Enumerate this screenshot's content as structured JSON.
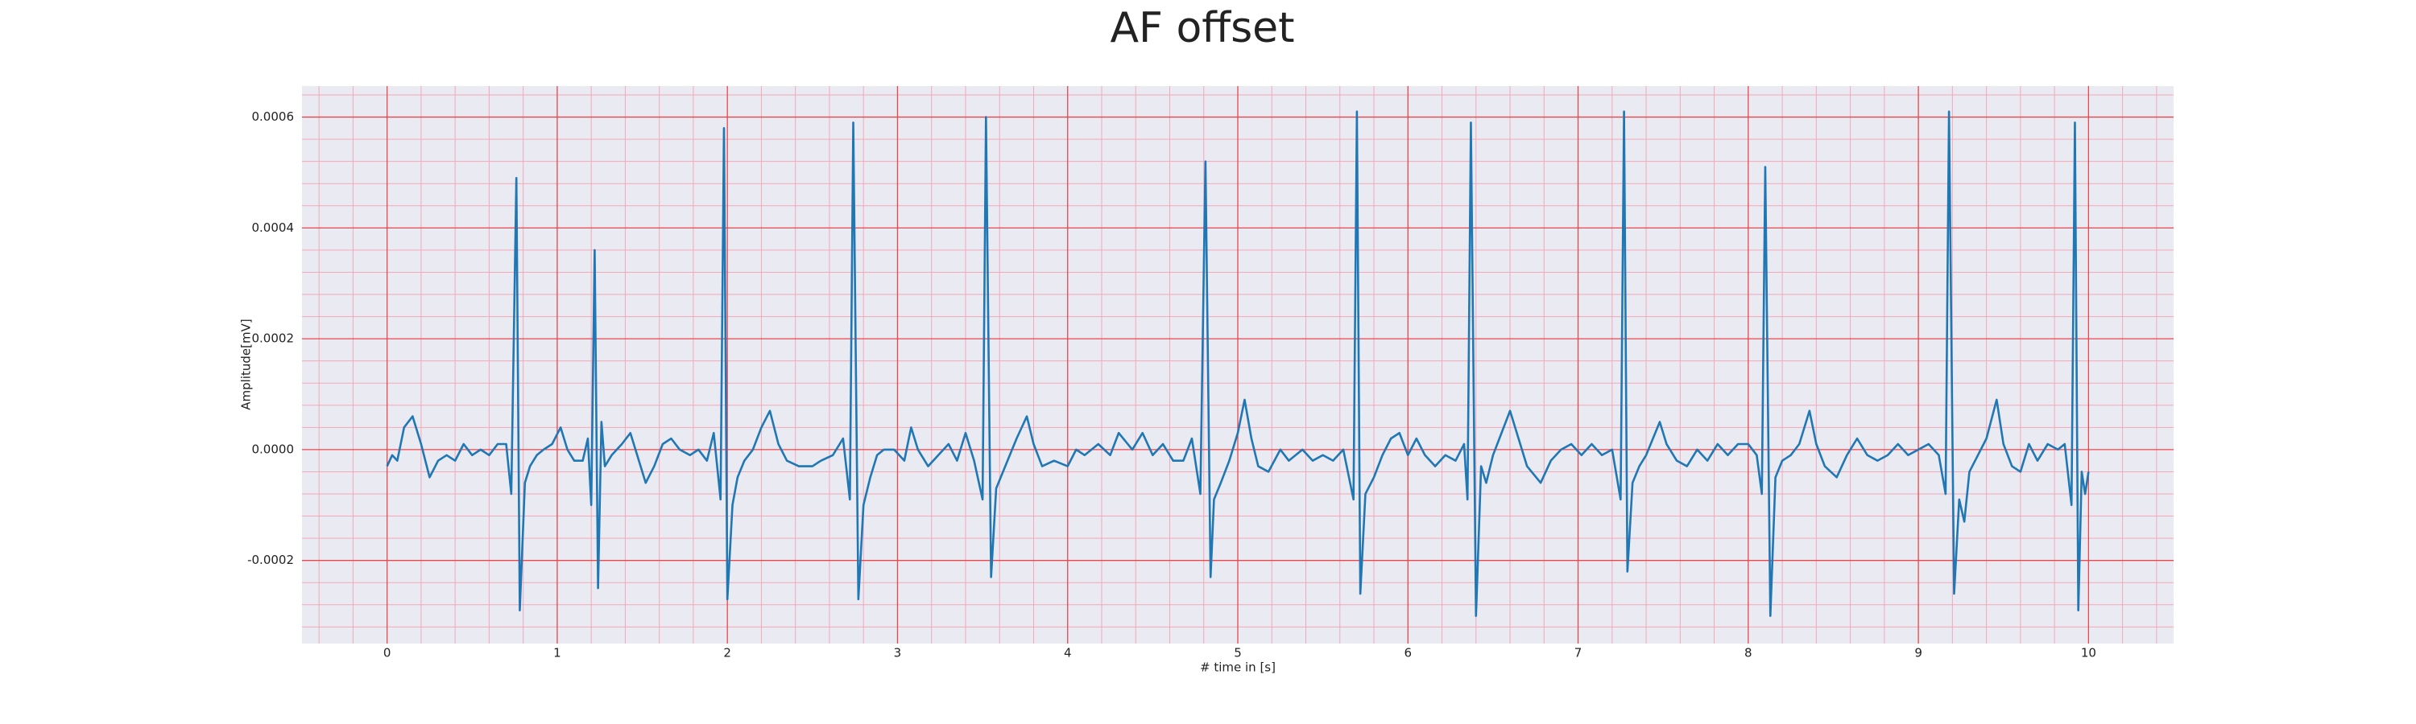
{
  "chart_data": {
    "type": "line",
    "title": "AF offset",
    "xlabel": "# time in [s]",
    "ylabel": "Amplitude[mV]",
    "xlim": [
      -0.5,
      10.5
    ],
    "ylim": [
      -0.00035,
      0.000656
    ],
    "xticks": [
      0,
      1,
      2,
      3,
      4,
      5,
      6,
      7,
      8,
      9,
      10
    ],
    "yticks": [
      -0.0002,
      {
        "value": 0,
        "label": "0.0000"
      },
      0.0002,
      0.0004,
      0.0006
    ],
    "xminorticks": [
      -0.4,
      -0.2,
      0.2,
      0.4,
      0.6,
      0.8,
      1.2,
      1.4,
      1.6,
      1.8,
      2.2,
      2.4,
      2.6,
      2.8,
      3.2,
      3.4,
      3.6,
      3.8,
      4.2,
      4.4,
      4.6,
      4.8,
      5.2,
      5.4,
      5.6,
      5.8,
      6.2,
      6.4,
      6.6,
      6.8,
      7.2,
      7.4,
      7.6,
      7.8,
      8.2,
      8.4,
      8.6,
      8.8,
      9.2,
      9.4,
      9.6,
      9.8,
      10.2,
      10.4
    ],
    "yminorticks": [
      -0.00032,
      -0.00028,
      -0.00024,
      -0.00016,
      -0.00012,
      -8e-05,
      -4e-05,
      4e-05,
      8e-05,
      0.00012,
      0.00016,
      0.00024,
      0.00028,
      0.00032,
      0.00036,
      0.00044,
      0.00048,
      0.00052,
      0.00056,
      0.00064
    ],
    "grid": true,
    "grid_color": "#e8474c",
    "minor_grid_color": "#f2a8b8",
    "background": "#eaeaf2",
    "x": [
      0,
      0.03,
      0.06,
      0.1,
      0.15,
      0.2,
      0.25,
      0.3,
      0.35,
      0.4,
      0.45,
      0.5,
      0.55,
      0.6,
      0.65,
      0.7,
      0.73,
      0.76,
      0.78,
      0.81,
      0.84,
      0.88,
      0.92,
      0.97,
      1.02,
      1.06,
      1.1,
      1.15,
      1.18,
      1.2,
      1.22,
      1.24,
      1.26,
      1.28,
      1.32,
      1.38,
      1.43,
      1.48,
      1.52,
      1.57,
      1.62,
      1.67,
      1.72,
      1.78,
      1.83,
      1.88,
      1.92,
      1.96,
      1.98,
      2.0,
      2.03,
      2.06,
      2.1,
      2.15,
      2.2,
      2.25,
      2.3,
      2.35,
      2.42,
      2.5,
      2.55,
      2.62,
      2.68,
      2.72,
      2.74,
      2.77,
      2.8,
      2.84,
      2.88,
      2.92,
      2.98,
      3.04,
      3.08,
      3.12,
      3.18,
      3.24,
      3.3,
      3.35,
      3.4,
      3.45,
      3.5,
      3.52,
      3.55,
      3.58,
      3.62,
      3.66,
      3.7,
      3.76,
      3.8,
      3.85,
      3.92,
      4.0,
      4.05,
      4.1,
      4.18,
      4.25,
      4.3,
      4.38,
      4.44,
      4.5,
      4.56,
      4.62,
      4.68,
      4.73,
      4.78,
      4.81,
      4.84,
      4.86,
      4.9,
      4.95,
      5.0,
      5.04,
      5.08,
      5.12,
      5.18,
      5.25,
      5.3,
      5.38,
      5.44,
      5.5,
      5.56,
      5.62,
      5.68,
      5.7,
      5.72,
      5.75,
      5.8,
      5.85,
      5.9,
      5.95,
      6.0,
      6.05,
      6.1,
      6.16,
      6.22,
      6.28,
      6.33,
      6.35,
      6.37,
      6.4,
      6.43,
      6.46,
      6.5,
      6.55,
      6.6,
      6.65,
      6.7,
      6.78,
      6.84,
      6.9,
      6.96,
      7.02,
      7.08,
      7.14,
      7.2,
      7.25,
      7.27,
      7.29,
      7.32,
      7.36,
      7.4,
      7.44,
      7.48,
      7.52,
      7.58,
      7.64,
      7.7,
      7.76,
      7.82,
      7.88,
      7.94,
      8.0,
      8.05,
      8.08,
      8.1,
      8.13,
      8.16,
      8.2,
      8.25,
      8.3,
      8.36,
      8.4,
      8.45,
      8.52,
      8.58,
      8.64,
      8.7,
      8.76,
      8.82,
      8.88,
      8.94,
      9.0,
      9.06,
      9.12,
      9.16,
      9.18,
      9.21,
      9.24,
      9.27,
      9.3,
      9.35,
      9.4,
      9.46,
      9.5,
      9.55,
      9.6,
      9.65,
      9.7,
      9.76,
      9.82,
      9.86,
      9.9,
      9.92,
      9.94,
      9.96,
      9.98,
      10.0
    ],
    "series": [
      {
        "color": "#1f77b4",
        "values": [
          -3e-05,
          -1e-05,
          -2e-05,
          4e-05,
          6e-05,
          1e-05,
          -5e-05,
          -2e-05,
          -1e-05,
          -2e-05,
          1e-05,
          -1e-05,
          0,
          -1e-05,
          1e-05,
          1e-05,
          -8e-05,
          0.00049,
          -0.00029,
          -6e-05,
          -3e-05,
          -1e-05,
          0,
          1e-05,
          4e-05,
          0,
          -2e-05,
          -2e-05,
          2e-05,
          -0.0001,
          0.00036,
          -0.00025,
          5e-05,
          -3e-05,
          -1e-05,
          1e-05,
          3e-05,
          -2e-05,
          -6e-05,
          -3e-05,
          1e-05,
          2e-05,
          0,
          -1e-05,
          0,
          -2e-05,
          3e-05,
          -9e-05,
          0.00058,
          -0.00027,
          -0.0001,
          -5e-05,
          -2e-05,
          0,
          4e-05,
          7e-05,
          1e-05,
          -2e-05,
          -3e-05,
          -3e-05,
          -2e-05,
          -1e-05,
          2e-05,
          -9e-05,
          0.00059,
          -0.00027,
          -0.0001,
          -5e-05,
          -1e-05,
          0,
          0,
          -2e-05,
          4e-05,
          0,
          -3e-05,
          -1e-05,
          1e-05,
          -2e-05,
          3e-05,
          -2e-05,
          -9e-05,
          0.0006,
          -0.00023,
          -7e-05,
          -4e-05,
          -1e-05,
          2e-05,
          6e-05,
          1e-05,
          -3e-05,
          -2e-05,
          -3e-05,
          0,
          -1e-05,
          1e-05,
          -1e-05,
          3e-05,
          0,
          3e-05,
          -1e-05,
          1e-05,
          -2e-05,
          -2e-05,
          2e-05,
          -8e-05,
          0.00052,
          -0.00023,
          -9e-05,
          -6e-05,
          -2e-05,
          3e-05,
          9e-05,
          2e-05,
          -3e-05,
          -4e-05,
          0,
          -2e-05,
          0,
          -2e-05,
          -1e-05,
          -2e-05,
          0,
          -9e-05,
          0.00061,
          -0.00026,
          -8e-05,
          -5e-05,
          -1e-05,
          2e-05,
          3e-05,
          -1e-05,
          2e-05,
          -1e-05,
          -3e-05,
          -1e-05,
          -2e-05,
          1e-05,
          -9e-05,
          0.00059,
          -0.0003,
          -3e-05,
          -6e-05,
          -1e-05,
          3e-05,
          7e-05,
          2e-05,
          -3e-05,
          -6e-05,
          -2e-05,
          0,
          1e-05,
          -1e-05,
          1e-05,
          -1e-05,
          0,
          -9e-05,
          0.00061,
          -0.00022,
          -6e-05,
          -3e-05,
          -1e-05,
          2e-05,
          5e-05,
          1e-05,
          -2e-05,
          -3e-05,
          0,
          -2e-05,
          1e-05,
          -1e-05,
          1e-05,
          1e-05,
          -1e-05,
          -8e-05,
          0.00051,
          -0.0003,
          -5e-05,
          -2e-05,
          -1e-05,
          1e-05,
          7e-05,
          1e-05,
          -3e-05,
          -5e-05,
          -1e-05,
          2e-05,
          -1e-05,
          -2e-05,
          -1e-05,
          1e-05,
          -1e-05,
          0,
          1e-05,
          -1e-05,
          -8e-05,
          0.00061,
          -0.00026,
          -9e-05,
          -0.00013,
          -4e-05,
          -1e-05,
          2e-05,
          9e-05,
          1e-05,
          -3e-05,
          -4e-05,
          1e-05,
          -2e-05,
          1e-05,
          0,
          1e-05,
          -0.0001,
          0.00059,
          -0.00029,
          -4e-05,
          -8e-05,
          -4e-05
        ]
      }
    ]
  }
}
